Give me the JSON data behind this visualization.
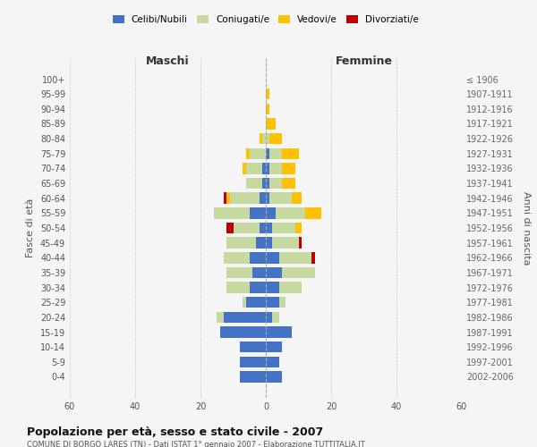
{
  "age_groups": [
    "0-4",
    "5-9",
    "10-14",
    "15-19",
    "20-24",
    "25-29",
    "30-34",
    "35-39",
    "40-44",
    "45-49",
    "50-54",
    "55-59",
    "60-64",
    "65-69",
    "70-74",
    "75-79",
    "80-84",
    "85-89",
    "90-94",
    "95-99",
    "100+"
  ],
  "birth_years": [
    "2002-2006",
    "1997-2001",
    "1992-1996",
    "1987-1991",
    "1982-1986",
    "1977-1981",
    "1972-1976",
    "1967-1971",
    "1962-1966",
    "1957-1961",
    "1952-1956",
    "1947-1951",
    "1942-1946",
    "1937-1941",
    "1932-1936",
    "1927-1931",
    "1922-1926",
    "1917-1921",
    "1912-1916",
    "1907-1911",
    "≤ 1906"
  ],
  "maschi": {
    "celibi": [
      8,
      8,
      8,
      14,
      13,
      6,
      5,
      4,
      5,
      3,
      2,
      5,
      2,
      1,
      1,
      0,
      0,
      0,
      0,
      0,
      0
    ],
    "coniugati": [
      0,
      0,
      0,
      0,
      2,
      1,
      7,
      8,
      8,
      9,
      8,
      11,
      9,
      5,
      5,
      5,
      1,
      0,
      0,
      0,
      0
    ],
    "vedovi": [
      0,
      0,
      0,
      0,
      0,
      0,
      0,
      0,
      0,
      0,
      0,
      0,
      1,
      0,
      1,
      1,
      1,
      0,
      0,
      0,
      0
    ],
    "divorziati": [
      0,
      0,
      0,
      0,
      0,
      0,
      0,
      0,
      0,
      0,
      2,
      0,
      1,
      0,
      0,
      0,
      0,
      0,
      0,
      0,
      0
    ]
  },
  "femmine": {
    "nubili": [
      5,
      4,
      5,
      8,
      2,
      4,
      4,
      5,
      4,
      2,
      2,
      3,
      1,
      1,
      1,
      1,
      0,
      0,
      0,
      0,
      0
    ],
    "coniugate": [
      0,
      0,
      0,
      0,
      2,
      2,
      7,
      10,
      10,
      8,
      7,
      9,
      7,
      4,
      4,
      4,
      1,
      0,
      0,
      0,
      0
    ],
    "vedove": [
      0,
      0,
      0,
      0,
      0,
      0,
      0,
      0,
      0,
      0,
      2,
      5,
      3,
      4,
      4,
      5,
      4,
      3,
      1,
      1,
      0
    ],
    "divorziate": [
      0,
      0,
      0,
      0,
      0,
      0,
      0,
      0,
      1,
      1,
      0,
      0,
      0,
      0,
      0,
      0,
      0,
      0,
      0,
      0,
      0
    ]
  },
  "colors": {
    "celibi_nubili": "#4472c4",
    "coniugati": "#c5d9a0",
    "vedovi": "#ffc000",
    "divorziati": "#c00000"
  },
  "title": "Popolazione per età, sesso e stato civile - 2007",
  "subtitle": "COMUNE DI BORGO LARES (TN) - Dati ISTAT 1° gennaio 2007 - Elaborazione TUTTITALIA.IT",
  "xlabel_left": "Maschi",
  "xlabel_right": "Femmine",
  "ylabel_left": "Fasce di età",
  "ylabel_right": "Anni di nascita",
  "xlim": 60,
  "legend_labels": [
    "Celibi/Nubili",
    "Coniugati/e",
    "Vedovi/e",
    "Divorziati/e"
  ],
  "bg_color": "#f5f5f5",
  "grid_color": "#cccccc"
}
